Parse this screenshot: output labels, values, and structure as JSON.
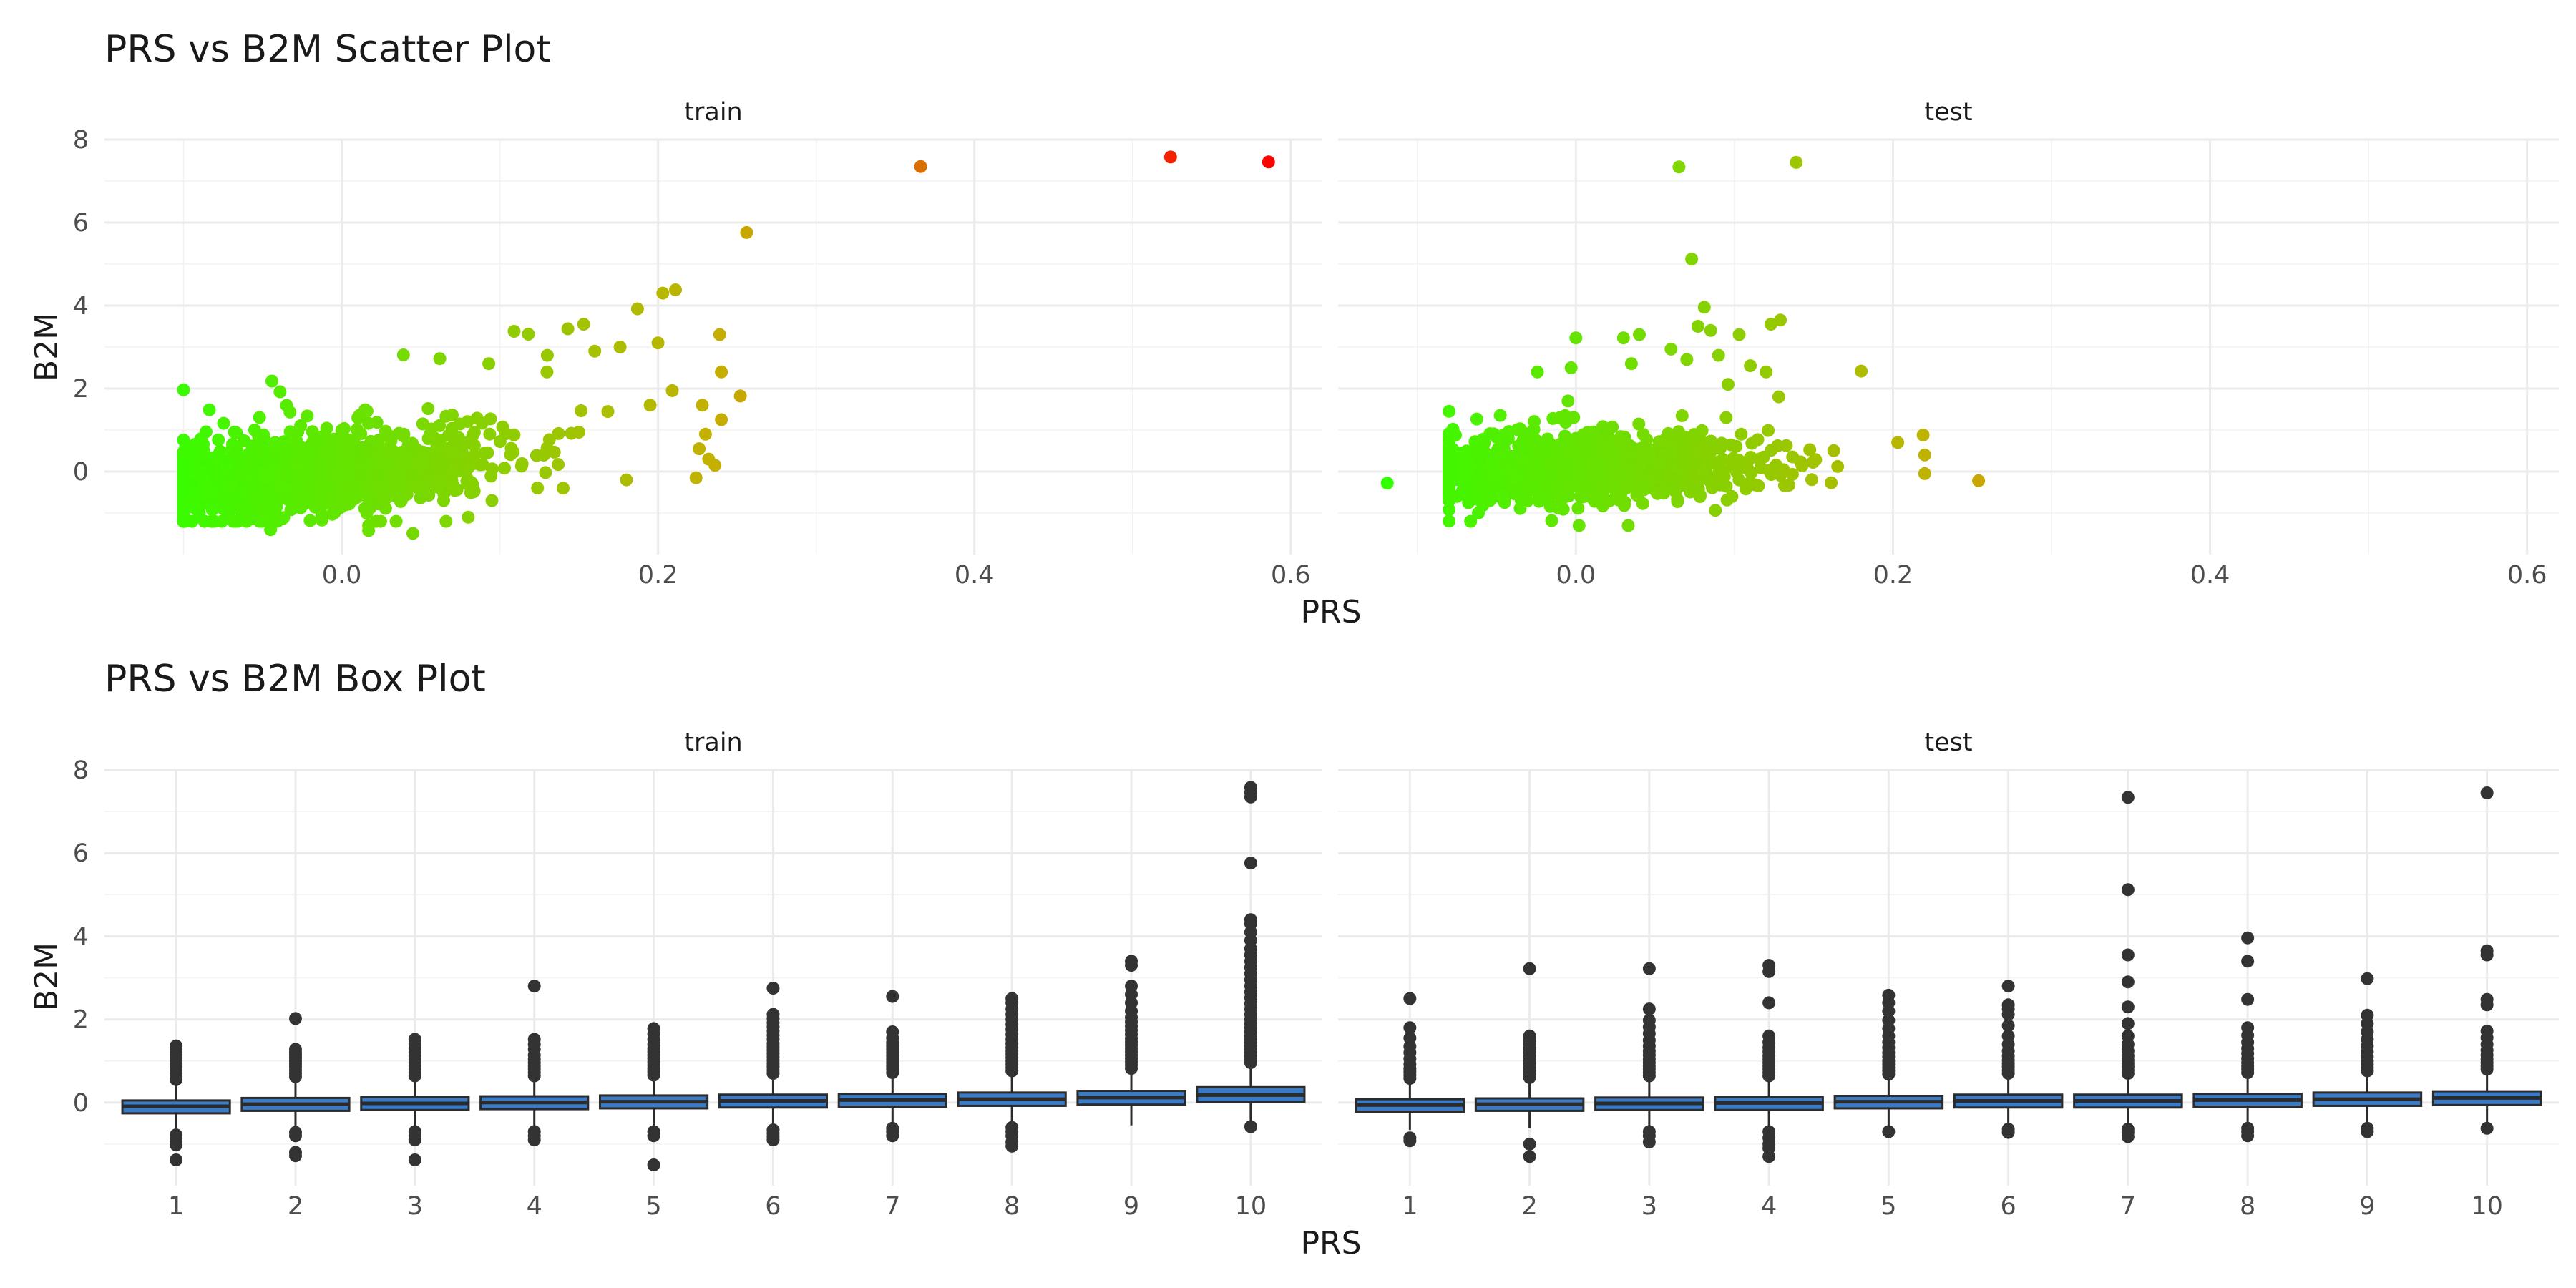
{
  "chart_data": [
    {
      "type": "scatter",
      "title": "PRS vs B2M Scatter Plot",
      "xlabel": "PRS",
      "ylabel": "B2M",
      "xlim": [
        -0.15,
        0.62
      ],
      "ylim": [
        -2,
        8
      ],
      "x_ticks": [
        "0.0",
        "0.2",
        "0.4",
        "0.6"
      ],
      "x_tick_values": [
        0.0,
        0.2,
        0.4,
        0.6
      ],
      "y_ticks": [
        "0",
        "2",
        "4",
        "6",
        "8"
      ],
      "y_tick_values": [
        0,
        2,
        4,
        6,
        8
      ],
      "color_gradient": [
        "#33ff00",
        "#c4b000",
        "#ff0000"
      ],
      "grid": true,
      "panels": [
        {
          "name": "train",
          "outliers": [
            {
              "x": 0.366,
              "y": 7.35
            },
            {
              "x": 0.524,
              "y": 7.58
            },
            {
              "x": 0.586,
              "y": 7.46
            },
            {
              "x": 0.256,
              "y": 5.76
            },
            {
              "x": 0.211,
              "y": 4.38
            },
            {
              "x": 0.203,
              "y": 4.3
            },
            {
              "x": 0.187,
              "y": 3.92
            },
            {
              "x": 0.153,
              "y": 3.55
            },
            {
              "x": 0.143,
              "y": 3.44
            },
            {
              "x": 0.109,
              "y": 3.38
            },
            {
              "x": 0.118,
              "y": 3.31
            },
            {
              "x": 0.239,
              "y": 3.3
            },
            {
              "x": 0.2,
              "y": 3.1
            },
            {
              "x": 0.176,
              "y": 3.0
            },
            {
              "x": 0.16,
              "y": 2.9
            },
            {
              "x": 0.039,
              "y": 2.81
            },
            {
              "x": 0.062,
              "y": 2.72
            },
            {
              "x": 0.093,
              "y": 2.6
            },
            {
              "x": 0.13,
              "y": 2.8
            },
            {
              "x": 0.24,
              "y": 2.4
            },
            {
              "x": 0.228,
              "y": 1.6
            },
            {
              "x": 0.252,
              "y": 1.82
            },
            {
              "x": 0.24,
              "y": 1.25
            },
            {
              "x": 0.23,
              "y": 0.9
            },
            {
              "x": 0.209,
              "y": 1.95
            },
            {
              "x": 0.195,
              "y": 1.6
            },
            {
              "x": 0.232,
              "y": 0.3
            },
            {
              "x": 0.236,
              "y": 0.15
            },
            {
              "x": 0.224,
              "y": -0.15
            },
            {
              "x": 0.226,
              "y": 0.55
            },
            {
              "x": -0.02,
              "y": -1.18
            },
            {
              "x": -0.045,
              "y": -1.4
            },
            {
              "x": 0.017,
              "y": -1.3
            },
            {
              "x": 0.017,
              "y": -1.42
            },
            {
              "x": 0.045,
              "y": -1.49
            },
            {
              "x": 0.08,
              "y": -1.1
            },
            {
              "x": -0.099,
              "y": -0.89
            },
            {
              "x": -0.1,
              "y": -0.55
            },
            {
              "x": 0.095,
              "y": -0.7
            },
            {
              "x": 0.14,
              "y": -0.4
            },
            {
              "x": 0.18,
              "y": -0.2
            }
          ],
          "cloud": {
            "x_min": -0.1,
            "x_max": 0.23,
            "n": 1300,
            "slope": 4.0,
            "spread": 0.42
          }
        },
        {
          "name": "test",
          "outliers": [
            {
              "x": 0.065,
              "y": 7.34
            },
            {
              "x": 0.139,
              "y": 7.45
            },
            {
              "x": 0.073,
              "y": 5.12
            },
            {
              "x": 0.081,
              "y": 3.96
            },
            {
              "x": 0.129,
              "y": 3.65
            },
            {
              "x": 0.123,
              "y": 3.55
            },
            {
              "x": 0.077,
              "y": 3.5
            },
            {
              "x": 0.04,
              "y": 3.3
            },
            {
              "x": 0.03,
              "y": 3.22
            },
            {
              "x": 0.0,
              "y": 3.22
            },
            {
              "x": 0.103,
              "y": 3.3
            },
            {
              "x": 0.085,
              "y": 3.4
            },
            {
              "x": 0.06,
              "y": 2.95
            },
            {
              "x": 0.09,
              "y": 2.8
            },
            {
              "x": 0.07,
              "y": 2.7
            },
            {
              "x": 0.035,
              "y": 2.6
            },
            {
              "x": -0.003,
              "y": 2.5
            },
            {
              "x": 0.11,
              "y": 2.55
            },
            {
              "x": 0.12,
              "y": 2.4
            },
            {
              "x": 0.18,
              "y": 2.42
            },
            {
              "x": 0.096,
              "y": 2.1
            },
            {
              "x": 0.128,
              "y": 1.8
            },
            {
              "x": -0.005,
              "y": 1.7
            },
            {
              "x": -0.119,
              "y": -0.28
            },
            {
              "x": 0.254,
              "y": -0.22
            },
            {
              "x": 0.219,
              "y": 0.88
            },
            {
              "x": 0.22,
              "y": 0.4
            },
            {
              "x": 0.22,
              "y": -0.05
            },
            {
              "x": 0.203,
              "y": 0.7
            },
            {
              "x": 0.002,
              "y": -1.3
            },
            {
              "x": 0.033,
              "y": -1.3
            },
            {
              "x": -0.076,
              "y": 0.88
            },
            {
              "x": -0.075,
              "y": -0.6
            }
          ],
          "cloud": {
            "x_min": -0.08,
            "x_max": 0.2,
            "n": 1100,
            "slope": 1.4,
            "spread": 0.36
          }
        }
      ]
    },
    {
      "type": "box",
      "title": "PRS vs B2M Box Plot",
      "xlabel": "PRS",
      "ylabel": "B2M",
      "categories": [
        "1",
        "2",
        "3",
        "4",
        "5",
        "6",
        "7",
        "8",
        "9",
        "10"
      ],
      "ylim": [
        -2,
        8
      ],
      "y_ticks": [
        "0",
        "2",
        "4",
        "6",
        "8"
      ],
      "y_tick_values": [
        0,
        2,
        4,
        6,
        8
      ],
      "box_fill": "#3a7bc8",
      "box_line": "#2b2b2b",
      "grid": true,
      "panels": [
        {
          "name": "train",
          "boxes": [
            {
              "q1": -0.26,
              "median": -0.09,
              "q3": 0.05,
              "lo": -0.72,
              "hi": 0.5,
              "outliers": [
                0.55,
                0.62,
                0.7,
                0.78,
                0.86,
                0.93,
                1.0,
                1.07,
                1.14,
                1.21,
                1.28,
                1.36,
                -0.78,
                -0.86,
                -0.94,
                -1.02,
                -1.38
              ]
            },
            {
              "q1": -0.2,
              "median": -0.04,
              "q3": 0.11,
              "lo": -0.68,
              "hi": 0.58,
              "outliers": [
                0.62,
                0.7,
                0.78,
                0.86,
                0.93,
                1.0,
                1.07,
                1.14,
                1.21,
                1.28,
                2.02,
                -0.72,
                -0.8,
                -1.2,
                -1.28
              ]
            },
            {
              "q1": -0.18,
              "median": -0.02,
              "q3": 0.13,
              "lo": -0.62,
              "hi": 0.6,
              "outliers": [
                0.64,
                0.72,
                0.8,
                0.88,
                0.96,
                1.04,
                1.12,
                1.2,
                1.3,
                1.4,
                1.52,
                -0.7,
                -0.8,
                -0.9,
                -1.38
              ]
            },
            {
              "q1": -0.16,
              "median": 0.0,
              "q3": 0.15,
              "lo": -0.62,
              "hi": 0.6,
              "outliers": [
                0.64,
                0.72,
                0.8,
                0.88,
                0.96,
                1.04,
                1.14,
                1.28,
                1.4,
                1.52,
                2.8,
                -0.7,
                -0.8,
                -0.9
              ]
            },
            {
              "q1": -0.14,
              "median": 0.02,
              "q3": 0.17,
              "lo": -0.6,
              "hi": 0.62,
              "outliers": [
                0.66,
                0.74,
                0.82,
                0.9,
                0.98,
                1.06,
                1.14,
                1.22,
                1.3,
                1.4,
                1.52,
                1.65,
                1.78,
                -0.7,
                -0.8,
                -1.5
              ]
            },
            {
              "q1": -0.12,
              "median": 0.04,
              "q3": 0.19,
              "lo": -0.58,
              "hi": 0.64,
              "outliers": [
                0.7,
                0.78,
                0.86,
                0.94,
                1.02,
                1.1,
                1.18,
                1.26,
                1.34,
                1.42,
                1.52,
                1.62,
                1.72,
                1.82,
                1.92,
                2.02,
                2.12,
                2.75,
                -0.66,
                -0.74,
                -0.82,
                -0.9
              ]
            },
            {
              "q1": -0.1,
              "median": 0.06,
              "q3": 0.21,
              "lo": -0.56,
              "hi": 0.66,
              "outliers": [
                0.72,
                0.8,
                0.88,
                0.96,
                1.04,
                1.12,
                1.2,
                1.28,
                1.36,
                1.44,
                1.55,
                1.7,
                2.55,
                -0.62,
                -0.7,
                -0.8
              ]
            },
            {
              "q1": -0.08,
              "median": 0.08,
              "q3": 0.24,
              "lo": -0.54,
              "hi": 0.7,
              "outliers": [
                0.76,
                0.84,
                0.92,
                1.0,
                1.08,
                1.16,
                1.24,
                1.32,
                1.42,
                1.52,
                1.64,
                1.76,
                1.88,
                2.0,
                2.12,
                2.25,
                2.4,
                2.5,
                -0.6,
                -0.7,
                -0.8,
                -0.95,
                -1.05
              ]
            },
            {
              "q1": -0.05,
              "median": 0.12,
              "q3": 0.28,
              "lo": -0.55,
              "hi": 0.76,
              "outliers": [
                0.82,
                0.9,
                0.98,
                1.06,
                1.14,
                1.22,
                1.3,
                1.38,
                1.46,
                1.54,
                1.64,
                1.74,
                1.84,
                1.94,
                2.05,
                2.2,
                2.4,
                2.6,
                2.8,
                3.3,
                3.4
              ]
            },
            {
              "q1": 0.01,
              "median": 0.18,
              "q3": 0.37,
              "lo": -0.55,
              "hi": 0.9,
              "outliers": [
                0.96,
                1.04,
                1.12,
                1.2,
                1.28,
                1.36,
                1.44,
                1.52,
                1.6,
                1.7,
                1.8,
                1.9,
                2.0,
                2.12,
                2.25,
                2.38,
                2.52,
                2.66,
                2.8,
                2.95,
                3.1,
                3.25,
                3.4,
                3.55,
                3.7,
                3.9,
                4.1,
                4.3,
                4.4,
                5.76,
                7.35,
                7.46,
                7.58,
                -0.58
              ]
            }
          ]
        },
        {
          "name": "test",
          "boxes": [
            {
              "q1": -0.22,
              "median": -0.06,
              "q3": 0.08,
              "lo": -0.66,
              "hi": 0.52,
              "outliers": [
                0.58,
                0.66,
                0.74,
                0.82,
                0.92,
                1.05,
                1.2,
                1.35,
                1.55,
                1.8,
                2.5,
                -0.85,
                -0.92
              ]
            },
            {
              "q1": -0.2,
              "median": -0.04,
              "q3": 0.1,
              "lo": -0.62,
              "hi": 0.55,
              "outliers": [
                0.6,
                0.68,
                0.76,
                0.84,
                0.92,
                1.0,
                1.1,
                1.2,
                1.3,
                1.4,
                1.5,
                1.6,
                3.22,
                -1.0,
                -1.3
              ]
            },
            {
              "q1": -0.18,
              "median": -0.02,
              "q3": 0.12,
              "lo": -0.6,
              "hi": 0.58,
              "outliers": [
                0.64,
                0.72,
                0.8,
                0.88,
                0.96,
                1.04,
                1.14,
                1.24,
                1.36,
                1.5,
                1.66,
                1.82,
                1.98,
                2.25,
                3.22,
                -0.7,
                -0.8,
                -0.95
              ]
            },
            {
              "q1": -0.18,
              "median": -0.01,
              "q3": 0.13,
              "lo": -0.6,
              "hi": 0.58,
              "outliers": [
                0.64,
                0.72,
                0.8,
                0.88,
                0.96,
                1.04,
                1.12,
                1.22,
                1.32,
                1.45,
                1.6,
                2.4,
                3.15,
                3.3,
                -0.7,
                -0.85,
                -1.0,
                -1.1,
                -1.3
              ]
            },
            {
              "q1": -0.14,
              "median": 0.02,
              "q3": 0.16,
              "lo": -0.58,
              "hi": 0.62,
              "outliers": [
                0.68,
                0.76,
                0.84,
                0.92,
                1.0,
                1.1,
                1.2,
                1.32,
                1.45,
                1.6,
                1.78,
                1.98,
                2.2,
                2.4,
                2.58,
                -0.7
              ]
            },
            {
              "q1": -0.12,
              "median": 0.04,
              "q3": 0.19,
              "lo": -0.56,
              "hi": 0.64,
              "outliers": [
                0.7,
                0.78,
                0.86,
                0.94,
                1.02,
                1.12,
                1.24,
                1.4,
                1.6,
                1.85,
                2.12,
                2.25,
                2.35,
                2.8,
                -0.64,
                -0.72
              ]
            },
            {
              "q1": -0.12,
              "median": 0.04,
              "q3": 0.19,
              "lo": -0.56,
              "hi": 0.64,
              "outliers": [
                0.7,
                0.78,
                0.86,
                0.94,
                1.02,
                1.12,
                1.24,
                1.4,
                1.6,
                1.9,
                2.3,
                2.9,
                3.55,
                5.12,
                7.34,
                -0.64,
                -0.72,
                -0.82
              ]
            },
            {
              "q1": -0.1,
              "median": 0.06,
              "q3": 0.21,
              "lo": -0.56,
              "hi": 0.66,
              "outliers": [
                0.72,
                0.8,
                0.88,
                0.96,
                1.06,
                1.18,
                1.3,
                1.45,
                1.62,
                1.8,
                2.48,
                3.4,
                3.96,
                -0.62,
                -0.7,
                -0.8
              ]
            },
            {
              "q1": -0.08,
              "median": 0.08,
              "q3": 0.24,
              "lo": -0.54,
              "hi": 0.7,
              "outliers": [
                0.76,
                0.84,
                0.92,
                1.0,
                1.1,
                1.22,
                1.36,
                1.52,
                1.7,
                1.9,
                2.1,
                2.98,
                -0.62,
                -0.7
              ]
            },
            {
              "q1": -0.06,
              "median": 0.11,
              "q3": 0.27,
              "lo": -0.52,
              "hi": 0.74,
              "outliers": [
                0.8,
                0.88,
                0.96,
                1.04,
                1.14,
                1.26,
                1.4,
                1.56,
                1.72,
                2.35,
                2.48,
                3.55,
                3.65,
                7.45,
                -0.62
              ]
            }
          ]
        }
      ]
    }
  ]
}
